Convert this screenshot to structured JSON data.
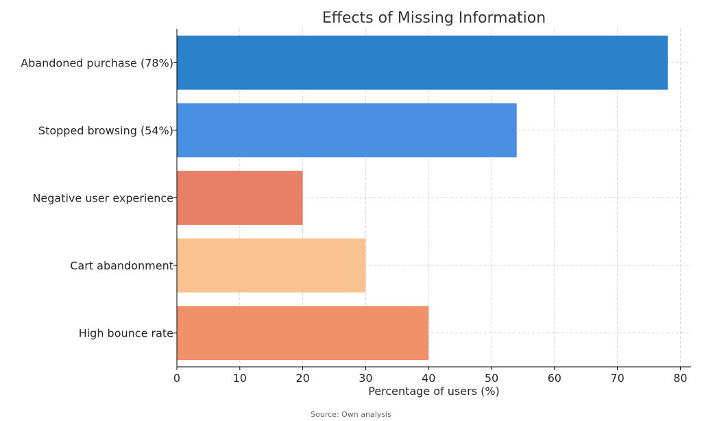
{
  "chart_data": {
    "type": "bar",
    "orientation": "horizontal",
    "title": "Effects of Missing Information",
    "xlabel": "Percentage of users (%)",
    "ylabel": "",
    "categories": [
      "Abandoned purchase (78%)",
      "Stopped browsing (54%)",
      "Negative user experience",
      "Cart abandonment",
      "High bounce rate"
    ],
    "values": [
      78,
      54,
      20,
      30,
      40
    ],
    "colors": [
      "#2b82cb",
      "#4a90e2",
      "#e87f67",
      "#f8c291",
      "#f0916a"
    ],
    "xlim": [
      0,
      81.7
    ],
    "xticks": [
      0,
      10,
      20,
      30,
      40,
      50,
      60,
      70,
      80
    ],
    "grid": true,
    "source": "Source: Own analysis"
  }
}
